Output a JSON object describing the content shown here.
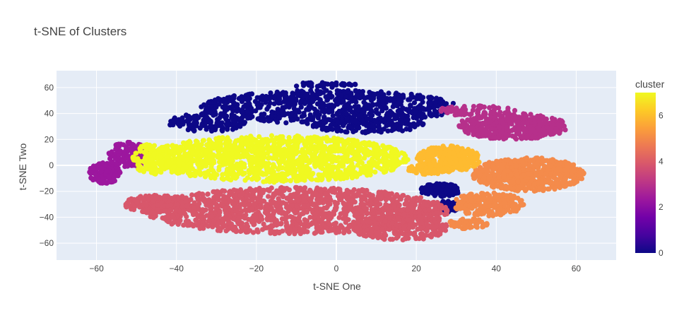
{
  "chart_data": {
    "type": "scatter",
    "title": "t-SNE of Clusters",
    "xlabel": "t-SNE One",
    "ylabel": "t-SNE Two",
    "xlim": [
      -70,
      70
    ],
    "ylim": [
      -73,
      73
    ],
    "x_ticks": [
      -60,
      -40,
      -20,
      0,
      20,
      40,
      60
    ],
    "y_ticks": [
      -60,
      -40,
      -20,
      0,
      20,
      40,
      60
    ],
    "grid": true,
    "colorbar": {
      "title": "cluster",
      "range": [
        0,
        7
      ],
      "ticks": [
        0,
        2,
        4,
        6
      ],
      "colorscale": [
        "#0d0887",
        "#46039f",
        "#7201a8",
        "#9c179e",
        "#bd3786",
        "#d8576b",
        "#ed7953",
        "#fb9f3a",
        "#fdca26",
        "#f0f921"
      ]
    },
    "series": [
      {
        "cluster": 0,
        "color": "#0d0887",
        "regions": [
          {
            "cx": -2,
            "cy": 45,
            "rx": 32,
            "ry": 13,
            "n": 700
          },
          {
            "cx": 8,
            "cy": 31,
            "rx": 14,
            "ry": 6,
            "n": 160
          },
          {
            "cx": -32,
            "cy": 33,
            "rx": 10,
            "ry": 7,
            "n": 130
          },
          {
            "cx": -3,
            "cy": 62,
            "rx": 8,
            "ry": 2,
            "n": 40
          },
          {
            "cx": 26,
            "cy": -19,
            "rx": 5,
            "ry": 5,
            "n": 120
          },
          {
            "cx": 28,
            "cy": -32,
            "rx": 2.5,
            "ry": 5,
            "n": 40
          }
        ]
      },
      {
        "cluster": 3,
        "color": "#9c179e",
        "regions": [
          {
            "cx": -58,
            "cy": -6,
            "rx": 4,
            "ry": 8,
            "n": 130
          },
          {
            "cx": -52,
            "cy": 8,
            "rx": 5,
            "ry": 10,
            "n": 110
          }
        ]
      },
      {
        "cluster": 3.5,
        "color": "#b6308b",
        "regions": [
          {
            "cx": 44,
            "cy": 30,
            "rx": 14,
            "ry": 10,
            "n": 450
          },
          {
            "cx": 35,
            "cy": 42,
            "rx": 10,
            "ry": 4,
            "n": 80
          }
        ]
      },
      {
        "cluster": 4,
        "color": "#d8576b",
        "regions": [
          {
            "cx": -10,
            "cy": -35,
            "rx": 38,
            "ry": 18,
            "n": 1400
          },
          {
            "cx": 16,
            "cy": -48,
            "rx": 12,
            "ry": 10,
            "n": 260
          },
          {
            "cx": -45,
            "cy": -30,
            "rx": 8,
            "ry": 7,
            "n": 160
          }
        ]
      },
      {
        "cluster": 5,
        "color": "#f48b4b",
        "regions": [
          {
            "cx": 48,
            "cy": -7,
            "rx": 14,
            "ry": 13,
            "n": 600
          },
          {
            "cx": 38,
            "cy": -30,
            "rx": 9,
            "ry": 9,
            "n": 220
          },
          {
            "cx": 33,
            "cy": -45,
            "rx": 5,
            "ry": 4,
            "n": 60
          }
        ]
      },
      {
        "cluster": 6,
        "color": "#febb30",
        "regions": [
          {
            "cx": 28,
            "cy": 5,
            "rx": 8,
            "ry": 10,
            "n": 300
          },
          {
            "cx": 23,
            "cy": -3,
            "rx": 5,
            "ry": 4,
            "n": 80
          }
        ]
      },
      {
        "cluster": 7,
        "color": "#f0f921",
        "regions": [
          {
            "cx": -15,
            "cy": 5,
            "rx": 33,
            "ry": 18,
            "n": 1300
          },
          {
            "cx": -46,
            "cy": 5,
            "rx": 5,
            "ry": 12,
            "n": 120
          }
        ]
      }
    ]
  }
}
